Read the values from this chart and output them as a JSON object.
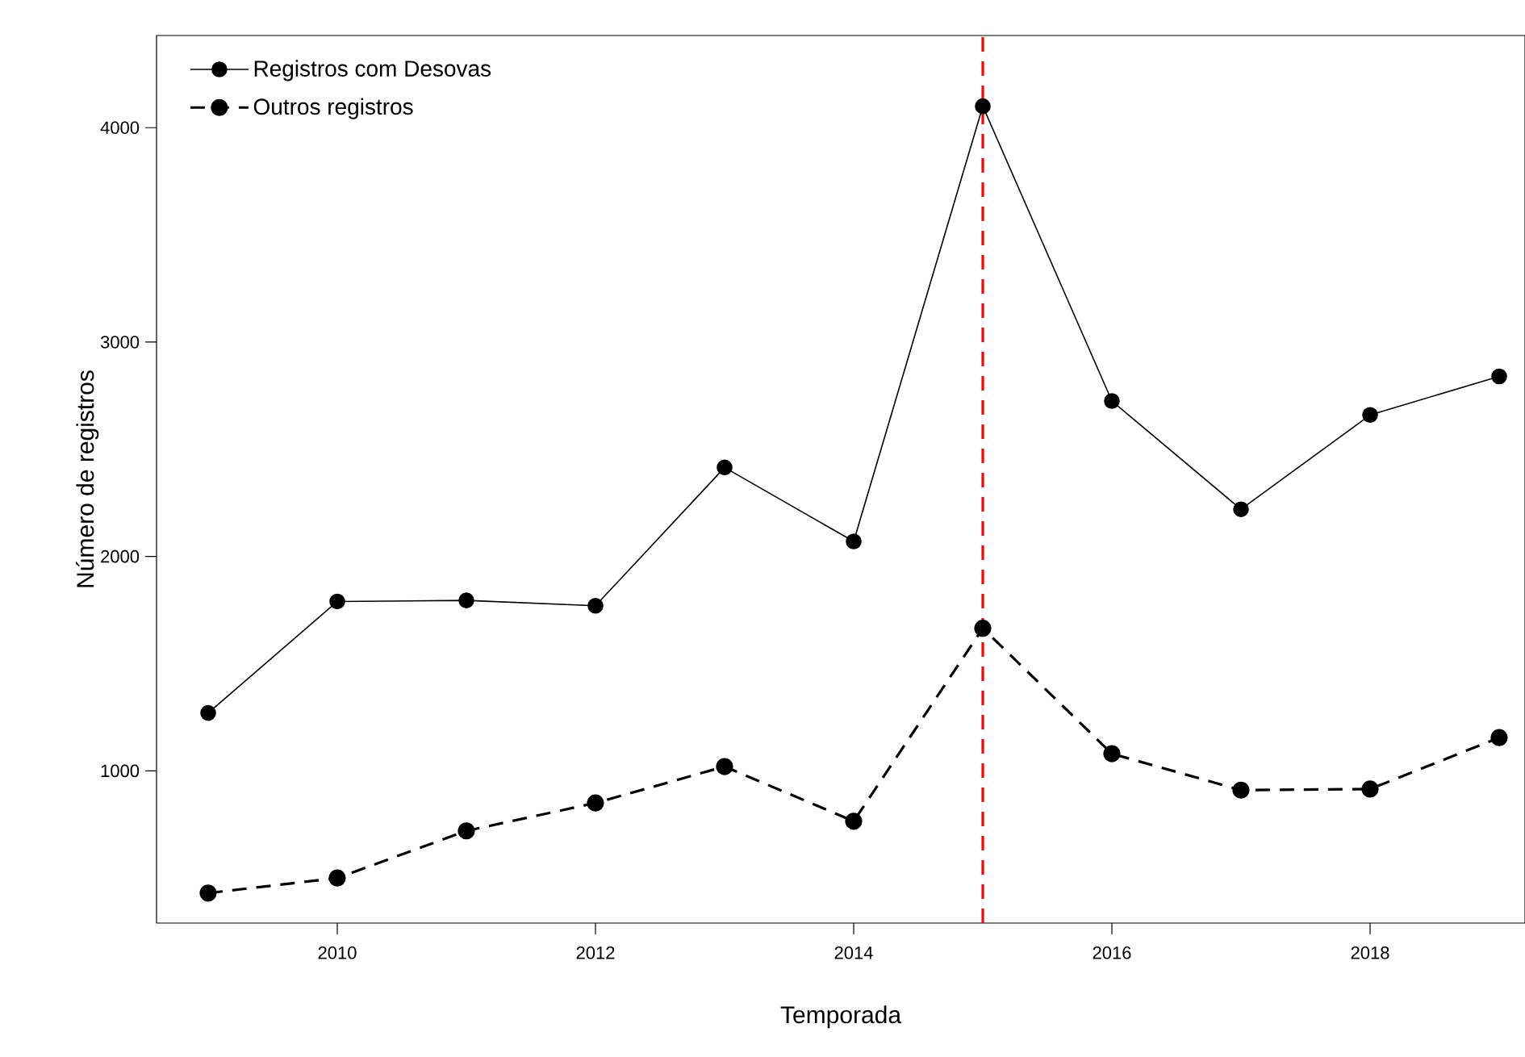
{
  "chart_data": {
    "type": "line",
    "xlabel": "Temporada",
    "ylabel": "Número de registros",
    "x": [
      2009,
      2010,
      2011,
      2012,
      2013,
      2014,
      2015,
      2016,
      2017,
      2018,
      2019
    ],
    "series": [
      {
        "name": "Registros com Desovas",
        "color": "#000000",
        "line_style": "solid",
        "values": [
          1270,
          1790,
          1795,
          1770,
          2415,
          2070,
          4100,
          2725,
          2220,
          2660,
          2840
        ]
      },
      {
        "name": "Outros registros",
        "color": "#000000",
        "line_style": "dashed",
        "values": [
          430,
          500,
          720,
          850,
          1020,
          765,
          1665,
          1080,
          910,
          915,
          1155
        ]
      }
    ],
    "xlim": [
      2008.6,
      2019.2
    ],
    "ylim": [
      290,
      4430
    ],
    "xticks": [
      2010,
      2012,
      2014,
      2016,
      2018
    ],
    "yticks": [
      1000,
      2000,
      3000,
      4000
    ],
    "ref_lines": [
      {
        "axis": "x",
        "value": 2015,
        "color": "#ff0000",
        "line_style": "dashed"
      }
    ],
    "marker": "circle",
    "grid": false,
    "legend": "top left"
  }
}
